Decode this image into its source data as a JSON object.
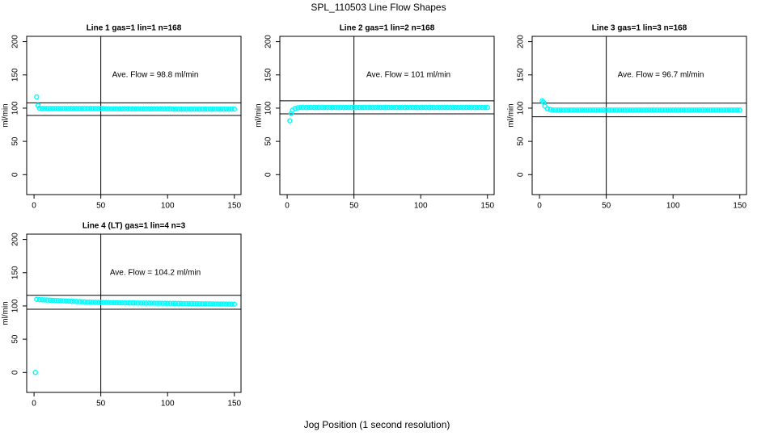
{
  "title": "SPL_110503  Line Flow Shapes",
  "xlabel": "Jog Position (1 second resolution)",
  "chart_data": [
    {
      "type": "scatter",
      "title": "Line 1 gas=1 lin=1 n=168",
      "ylabel": "ml/min",
      "annotation": "Ave. Flow =  98.8  ml/min",
      "xlim": [
        -5.5,
        155
      ],
      "ylim": [
        -30,
        208
      ],
      "xticks": [
        0,
        50,
        100,
        150
      ],
      "yticks": [
        0,
        50,
        100,
        150,
        200
      ],
      "vline": 50,
      "hlines": [
        108,
        89
      ],
      "color": "#00ffff",
      "x": [
        2,
        3,
        4,
        6,
        8,
        10,
        12,
        14,
        16,
        18,
        20,
        22,
        24,
        26,
        28,
        30,
        32,
        34,
        36,
        38,
        40,
        42,
        44,
        46,
        48,
        50,
        52,
        54,
        56,
        58,
        60,
        62,
        64,
        66,
        68,
        70,
        72,
        74,
        76,
        78,
        80,
        82,
        84,
        86,
        88,
        90,
        92,
        94,
        96,
        98,
        100,
        102,
        104,
        106,
        108,
        110,
        112,
        114,
        116,
        118,
        120,
        122,
        124,
        126,
        128,
        130,
        132,
        134,
        136,
        138,
        140,
        142,
        144,
        146,
        148,
        150
      ],
      "values": [
        117,
        104,
        100,
        99.4,
        99.4,
        99.4,
        99.4,
        99.4,
        99.4,
        99.4,
        99.4,
        99.4,
        99.4,
        99.4,
        99.4,
        99.4,
        99.4,
        99.4,
        99.4,
        99.4,
        99.4,
        99.4,
        99.4,
        99.4,
        99.4,
        99.4,
        99.4,
        99,
        99,
        99,
        99,
        99,
        99,
        99,
        99,
        99,
        99,
        99,
        99,
        99,
        99,
        99,
        99,
        99,
        99,
        99,
        99,
        99,
        99,
        99,
        99,
        99,
        98.6,
        98.6,
        98.6,
        98.6,
        98.6,
        98.6,
        98.6,
        98.6,
        98.6,
        98.6,
        98.6,
        98.6,
        98.6,
        98.6,
        98.6,
        98.6,
        98.6,
        98.6,
        98.6,
        98.6,
        98.6,
        98.6,
        98.6,
        98.6
      ]
    },
    {
      "type": "scatter",
      "title": "Line 2 gas=1 lin=2 n=168",
      "ylabel": "ml/min",
      "annotation": "Ave. Flow =  101  ml/min",
      "xlim": [
        -5.5,
        155
      ],
      "ylim": [
        -30,
        208
      ],
      "xticks": [
        0,
        50,
        100,
        150
      ],
      "yticks": [
        0,
        50,
        100,
        150,
        200
      ],
      "vline": 50,
      "hlines": [
        111,
        91.5
      ],
      "color": "#00ffff",
      "x": [
        2,
        3,
        4,
        6,
        8,
        10,
        12,
        14,
        16,
        18,
        20,
        22,
        24,
        26,
        28,
        30,
        32,
        34,
        36,
        38,
        40,
        42,
        44,
        46,
        48,
        50,
        52,
        54,
        56,
        58,
        60,
        62,
        64,
        66,
        68,
        70,
        72,
        74,
        76,
        78,
        80,
        82,
        84,
        86,
        88,
        90,
        92,
        94,
        96,
        98,
        100,
        102,
        104,
        106,
        108,
        110,
        112,
        114,
        116,
        118,
        120,
        122,
        124,
        126,
        128,
        130,
        132,
        134,
        136,
        138,
        140,
        142,
        144,
        146,
        148,
        150
      ],
      "values": [
        81,
        92,
        97,
        99.5,
        100.5,
        101,
        101,
        101,
        101,
        101,
        101,
        101,
        101,
        101,
        101,
        101,
        101,
        101,
        101,
        101,
        101,
        101,
        101,
        101,
        101,
        101,
        101,
        101,
        101,
        101,
        101,
        101,
        101,
        101,
        101,
        101,
        101,
        101,
        101,
        101,
        101,
        101,
        101,
        101,
        101,
        101,
        101,
        101,
        101,
        101,
        101,
        101,
        101,
        101,
        101,
        101,
        101,
        101,
        101,
        101,
        101,
        101,
        101,
        101,
        101,
        101,
        101,
        101,
        101,
        101,
        101,
        101,
        101,
        101,
        101,
        101
      ]
    },
    {
      "type": "scatter",
      "title": "Line 3 gas=1 lin=3 n=168",
      "ylabel": "ml/min",
      "annotation": "Ave. Flow =  96.7  ml/min",
      "xlim": [
        -5.5,
        155
      ],
      "ylim": [
        -30,
        208
      ],
      "xticks": [
        0,
        50,
        100,
        150
      ],
      "yticks": [
        0,
        50,
        100,
        150,
        200
      ],
      "vline": 50,
      "hlines": [
        107.5,
        87
      ],
      "color": "#00ffff",
      "x": [
        2,
        3,
        4,
        6,
        8,
        10,
        12,
        14,
        16,
        18,
        20,
        22,
        24,
        26,
        28,
        30,
        32,
        34,
        36,
        38,
        40,
        42,
        44,
        46,
        48,
        50,
        52,
        54,
        56,
        58,
        60,
        62,
        64,
        66,
        68,
        70,
        72,
        74,
        76,
        78,
        80,
        82,
        84,
        86,
        88,
        90,
        92,
        94,
        96,
        98,
        100,
        102,
        104,
        106,
        108,
        110,
        112,
        114,
        116,
        118,
        120,
        122,
        124,
        126,
        128,
        130,
        132,
        134,
        136,
        138,
        140,
        142,
        144,
        146,
        148,
        150
      ],
      "values": [
        111,
        109,
        103,
        99,
        98,
        97.2,
        97.2,
        97.2,
        97.2,
        97.2,
        97.2,
        97.2,
        97.2,
        97.2,
        97.2,
        97.2,
        97.2,
        97.2,
        97.2,
        97.2,
        97.2,
        97.2,
        97.2,
        97.2,
        97.2,
        97.2,
        97.2,
        97.2,
        97.2,
        97.2,
        97.2,
        97.2,
        97.2,
        97.2,
        97.2,
        97.2,
        97.2,
        97.2,
        97.2,
        97.2,
        97.2,
        97.2,
        97.2,
        97.2,
        97.2,
        97.2,
        97.2,
        97.2,
        97.2,
        97.2,
        97.2,
        97.2,
        97.2,
        97.2,
        97.2,
        97.2,
        97.2,
        97.2,
        97.2,
        97.2,
        97.2,
        97.2,
        97.2,
        97.2,
        97.2,
        97.2,
        97.2,
        97.2,
        97.2,
        97.2,
        97.2,
        97.2,
        97.2,
        97.2,
        97.2,
        97.2
      ]
    },
    {
      "type": "scatter",
      "title": "Line 4 (LT) gas=1 lin=4 n=3",
      "ylabel": "ml/min",
      "annotation": "Ave. Flow =  104.2  ml/min",
      "xlim": [
        -5.5,
        155
      ],
      "ylim": [
        -30,
        208
      ],
      "xticks": [
        0,
        50,
        100,
        150
      ],
      "yticks": [
        0,
        50,
        100,
        150,
        200
      ],
      "vline": 50,
      "hlines": [
        116,
        95
      ],
      "color": "#00ffff",
      "x": [
        1,
        2,
        4,
        6,
        8,
        10,
        12,
        14,
        16,
        18,
        20,
        22,
        24,
        26,
        28,
        30,
        32,
        34,
        36,
        38,
        40,
        42,
        44,
        46,
        48,
        50,
        52,
        54,
        56,
        58,
        60,
        62,
        64,
        66,
        68,
        70,
        72,
        74,
        76,
        78,
        80,
        82,
        84,
        86,
        88,
        90,
        92,
        94,
        96,
        98,
        100,
        102,
        104,
        106,
        108,
        110,
        112,
        114,
        116,
        118,
        120,
        122,
        124,
        126,
        128,
        130,
        132,
        134,
        136,
        138,
        140,
        142,
        144,
        146,
        148,
        150
      ],
      "values": [
        0,
        110,
        109.5,
        109.3,
        109.1,
        108.9,
        108.7,
        108.5,
        108.3,
        108.1,
        107.9,
        107.7,
        107.5,
        107.3,
        107.1,
        106.9,
        106.7,
        106.5,
        106.3,
        106.1,
        105.9,
        105.8,
        105.7,
        105.6,
        105.5,
        105.4,
        105.3,
        105.2,
        105.1,
        105,
        104.9,
        104.9,
        104.8,
        104.8,
        104.7,
        104.7,
        104.6,
        104.6,
        104.5,
        104.5,
        104.4,
        104.4,
        104.3,
        104.3,
        104.2,
        104.2,
        104.1,
        104.1,
        104,
        104,
        103.9,
        103.9,
        103.8,
        103.8,
        103.7,
        103.7,
        103.6,
        103.6,
        103.5,
        103.5,
        103.4,
        103.4,
        103.3,
        103.3,
        103.2,
        103.2,
        103.1,
        103.1,
        103,
        103,
        102.9,
        102.9,
        102.8,
        102.8,
        102.7,
        102.7
      ]
    }
  ]
}
